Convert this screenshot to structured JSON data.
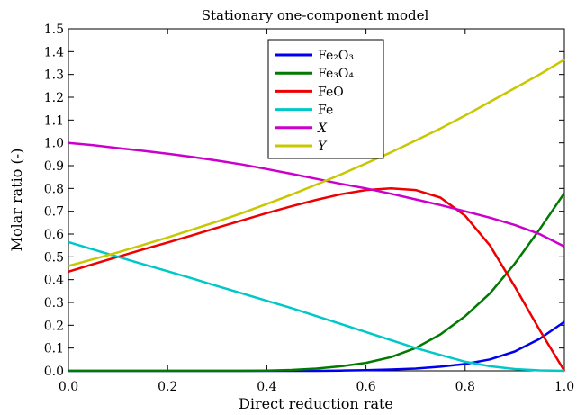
{
  "chart_data": {
    "type": "line",
    "title": "Stationary one-component model",
    "xlabel": "Direct reduction rate",
    "ylabel": "Molar ratio (-)",
    "xlim": [
      0.0,
      1.0
    ],
    "ylim": [
      0.0,
      1.5
    ],
    "xticks": [
      "0.0",
      "0.2",
      "0.4",
      "0.6",
      "0.8",
      "1.0"
    ],
    "yticks": [
      "0.0",
      "0.1",
      "0.2",
      "0.3",
      "0.4",
      "0.5",
      "0.6",
      "0.7",
      "0.8",
      "0.9",
      "1.0",
      "1.1",
      "1.2",
      "1.3",
      "1.4",
      "1.5"
    ],
    "legend_position": "top-center",
    "grid": false,
    "x": [
      0.0,
      0.05,
      0.1,
      0.15,
      0.2,
      0.25,
      0.3,
      0.35,
      0.4,
      0.45,
      0.5,
      0.55,
      0.6,
      0.65,
      0.7,
      0.75,
      0.8,
      0.85,
      0.9,
      0.95,
      1.0
    ],
    "series": [
      {
        "name": "Fe₂O₃",
        "color": "#0000ee",
        "values": [
          0.0,
          0.0,
          0.0,
          0.0,
          0.0,
          0.0,
          0.0,
          0.0,
          0.0,
          0.0,
          0.0,
          0.001,
          0.003,
          0.006,
          0.01,
          0.018,
          0.03,
          0.05,
          0.085,
          0.14,
          0.215
        ]
      },
      {
        "name": "Fe₃O₄",
        "color": "#007a00",
        "values": [
          0.0,
          0.0,
          0.0,
          0.0,
          0.0,
          0.0,
          0.0,
          0.0,
          0.001,
          0.004,
          0.01,
          0.02,
          0.035,
          0.06,
          0.1,
          0.16,
          0.24,
          0.34,
          0.47,
          0.62,
          0.78
        ]
      },
      {
        "name": "FeO",
        "color": "#ee0000",
        "values": [
          0.435,
          0.468,
          0.5,
          0.532,
          0.563,
          0.595,
          0.628,
          0.66,
          0.692,
          0.722,
          0.75,
          0.775,
          0.793,
          0.8,
          0.793,
          0.76,
          0.68,
          0.55,
          0.37,
          0.18,
          0.0
        ]
      },
      {
        "name": "Fe",
        "color": "#00c8c8",
        "values": [
          0.565,
          0.532,
          0.5,
          0.468,
          0.437,
          0.405,
          0.372,
          0.34,
          0.307,
          0.275,
          0.24,
          0.205,
          0.17,
          0.135,
          0.1,
          0.07,
          0.04,
          0.02,
          0.008,
          0.002,
          0.0
        ]
      },
      {
        "name": "X",
        "color": "#cc00cc",
        "values": [
          1.0,
          0.99,
          0.977,
          0.965,
          0.952,
          0.938,
          0.922,
          0.905,
          0.885,
          0.864,
          0.842,
          0.82,
          0.8,
          0.777,
          0.752,
          0.727,
          0.7,
          0.672,
          0.64,
          0.6,
          0.545
        ]
      },
      {
        "name": "Y",
        "color": "#c8c800",
        "values": [
          0.46,
          0.49,
          0.52,
          0.552,
          0.585,
          0.62,
          0.655,
          0.692,
          0.732,
          0.773,
          0.817,
          0.862,
          0.91,
          0.958,
          1.01,
          1.063,
          1.12,
          1.18,
          1.24,
          1.3,
          1.365
        ]
      }
    ]
  }
}
